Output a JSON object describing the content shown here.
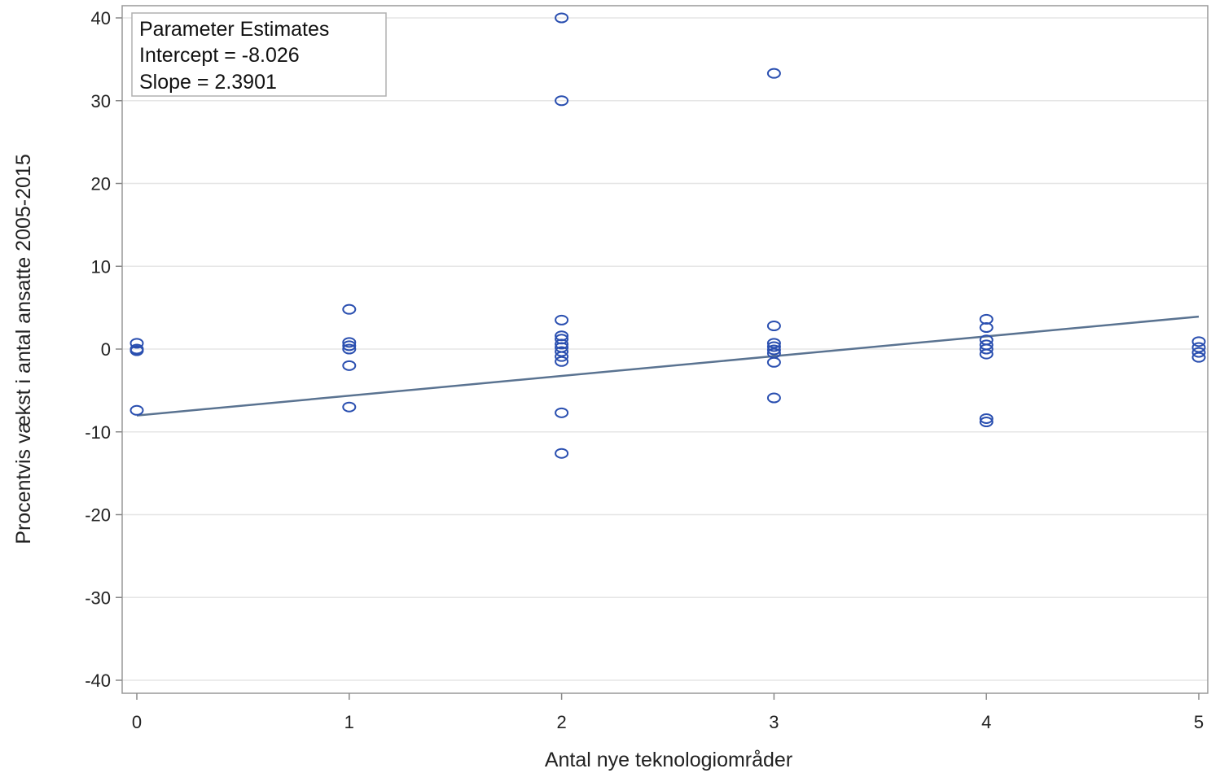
{
  "chart_data": {
    "type": "scatter",
    "xlabel": "Antal nye teknologiområder",
    "ylabel": "Procentvis vækst i antal ansatte 2005-2015",
    "xlim": [
      0,
      5
    ],
    "ylim": [
      -40,
      40
    ],
    "x_ticks": [
      "0",
      "1",
      "2",
      "3",
      "4",
      "5"
    ],
    "y_ticks": [
      "40",
      "30",
      "20",
      "10",
      "0",
      "-10",
      "-20",
      "-30",
      "-40"
    ],
    "grid": "horizontal",
    "legend_position": "top-left",
    "parameter_estimates": {
      "title": "Parameter Estimates",
      "intercept_text": "Intercept = -8.026",
      "slope_text": "Slope = 2.3901",
      "intercept": -8.026,
      "slope": 2.3901
    },
    "regression_line": {
      "x": [
        0,
        5
      ],
      "y": [
        -8.026,
        3.9245
      ]
    },
    "marker_color": "#2a4fb0",
    "line_color": "#5a7391",
    "points": [
      {
        "x": 0,
        "y": 0.7
      },
      {
        "x": 0,
        "y": 0.0
      },
      {
        "x": 0,
        "y": -0.2
      },
      {
        "x": 0,
        "y": -7.4
      },
      {
        "x": 1,
        "y": 4.8
      },
      {
        "x": 1,
        "y": 0.8
      },
      {
        "x": 1,
        "y": 0.4
      },
      {
        "x": 1,
        "y": 0.0
      },
      {
        "x": 1,
        "y": -2.0
      },
      {
        "x": 1,
        "y": -7.0
      },
      {
        "x": 2,
        "y": 40.0
      },
      {
        "x": 2,
        "y": 30.0
      },
      {
        "x": 2,
        "y": 3.5
      },
      {
        "x": 2,
        "y": 1.6
      },
      {
        "x": 2,
        "y": 1.2
      },
      {
        "x": 2,
        "y": 0.6
      },
      {
        "x": 2,
        "y": 0.2
      },
      {
        "x": 2,
        "y": -0.3
      },
      {
        "x": 2,
        "y": -0.9
      },
      {
        "x": 2,
        "y": -1.5
      },
      {
        "x": 2,
        "y": -7.7
      },
      {
        "x": 2,
        "y": -12.6
      },
      {
        "x": 3,
        "y": 33.3
      },
      {
        "x": 3,
        "y": 2.8
      },
      {
        "x": 3,
        "y": 0.7
      },
      {
        "x": 3,
        "y": 0.3
      },
      {
        "x": 3,
        "y": -0.1
      },
      {
        "x": 3,
        "y": -0.5
      },
      {
        "x": 3,
        "y": -1.6
      },
      {
        "x": 3,
        "y": -5.9
      },
      {
        "x": 4,
        "y": 3.6
      },
      {
        "x": 4,
        "y": 2.6
      },
      {
        "x": 4,
        "y": 1.1
      },
      {
        "x": 4,
        "y": 0.5
      },
      {
        "x": 4,
        "y": 0.0
      },
      {
        "x": 4,
        "y": -0.6
      },
      {
        "x": 4,
        "y": -8.4
      },
      {
        "x": 4,
        "y": -8.8
      },
      {
        "x": 5,
        "y": 0.9
      },
      {
        "x": 5,
        "y": 0.2
      },
      {
        "x": 5,
        "y": -0.4
      },
      {
        "x": 5,
        "y": -1.0
      }
    ]
  }
}
